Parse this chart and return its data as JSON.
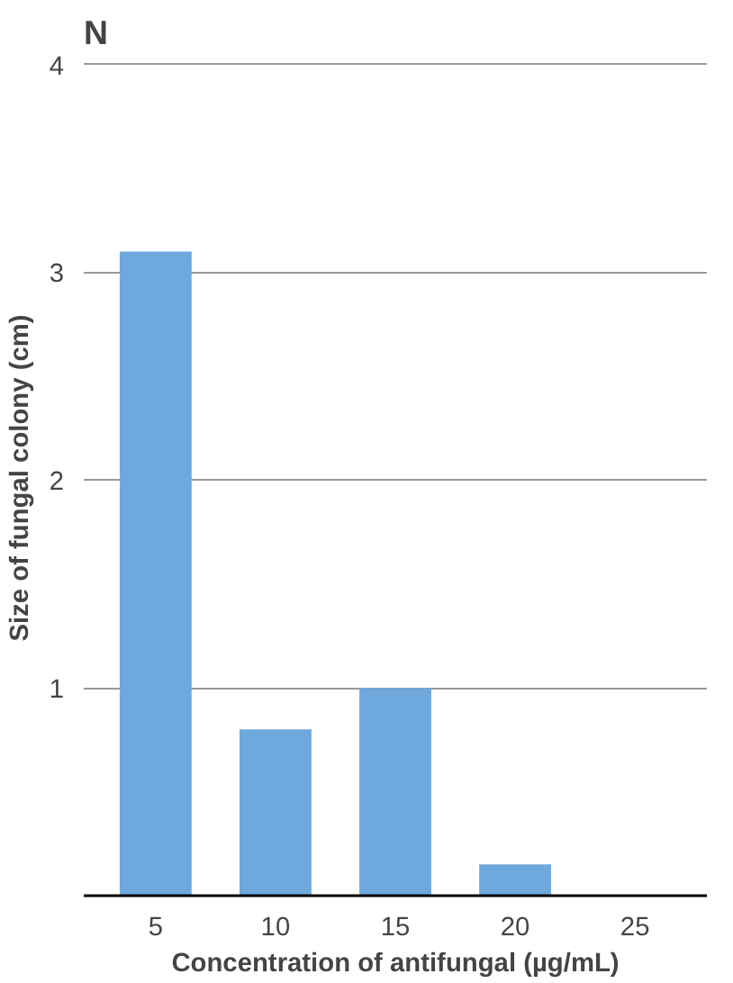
{
  "chart_data": {
    "type": "bar",
    "title": "N",
    "categories": [
      "5",
      "10",
      "15",
      "20",
      "25"
    ],
    "values": [
      3.1,
      0.8,
      1.0,
      0.15,
      0
    ],
    "color": "#6fa8dc",
    "xlabel": "Concentration of antifungal (µg/mL)",
    "ylabel": "Size of fungal colony (cm)",
    "ylim": [
      0,
      4.02
    ],
    "yticks": [
      1,
      2,
      3,
      4
    ],
    "grid": "y"
  }
}
